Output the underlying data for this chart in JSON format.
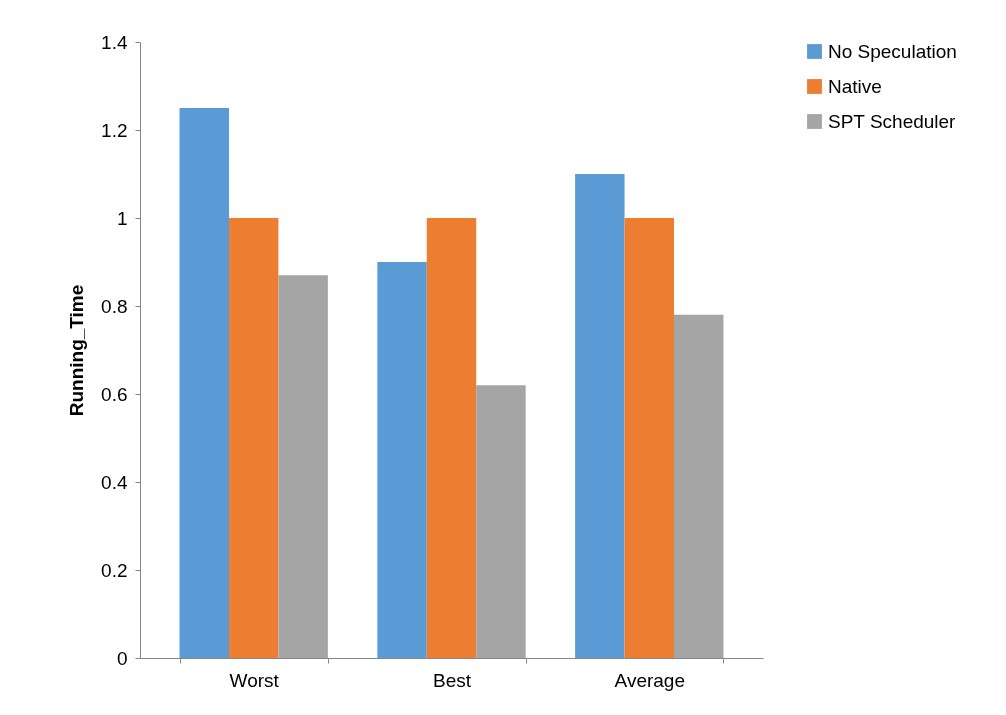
{
  "chart_data": {
    "type": "bar",
    "ylabel": "Running_Time",
    "categories": [
      "Worst",
      "Best",
      "Average"
    ],
    "series": [
      {
        "name": "No Speculation",
        "color": "#5b9bd5",
        "values": [
          1.25,
          0.9,
          1.1
        ]
      },
      {
        "name": "Native",
        "color": "#ed7d31",
        "values": [
          1.0,
          1.0,
          1.0
        ]
      },
      {
        "name": "SPT Scheduler",
        "color": "#a5a5a5",
        "values": [
          0.87,
          0.62,
          0.78
        ]
      }
    ],
    "ylim": [
      0,
      1.4
    ],
    "yticks": [
      0,
      0.2,
      0.4,
      0.6,
      0.8,
      1,
      1.2,
      1.4
    ],
    "grid": false,
    "legend": "right"
  }
}
